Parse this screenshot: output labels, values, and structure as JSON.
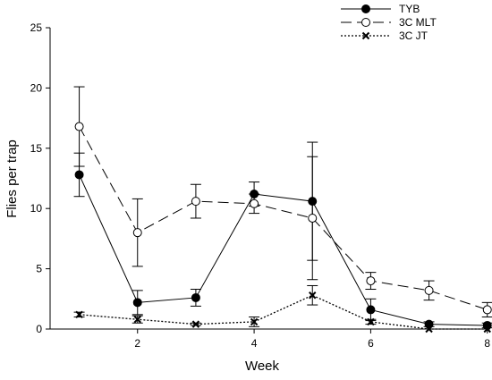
{
  "chart_data": {
    "type": "line",
    "xlabel": "Week",
    "ylabel": "Flies per trap",
    "xlim": [
      0.5,
      8.05
    ],
    "ylim": [
      0,
      25
    ],
    "xticks": [
      2,
      4,
      6,
      8
    ],
    "yticks": [
      0,
      5,
      10,
      15,
      20,
      25
    ],
    "grid": false,
    "legend_position": "top-right",
    "x": [
      1,
      2,
      3,
      4,
      5,
      6,
      7,
      8
    ],
    "series": [
      {
        "name": "TYB",
        "marker": "filled-circle",
        "line_style": "solid",
        "values": [
          12.8,
          2.2,
          2.6,
          11.2,
          10.6,
          1.6,
          0.4,
          0.3
        ],
        "error": [
          1.8,
          1.0,
          0.7,
          1.0,
          4.9,
          0.9,
          0.2,
          0.2
        ]
      },
      {
        "name": "3C MLT",
        "marker": "open-circle",
        "line_style": "long-dash",
        "values": [
          16.8,
          8.0,
          10.6,
          10.4,
          9.2,
          4.0,
          3.2,
          1.6
        ],
        "error": [
          3.3,
          2.8,
          1.4,
          0.8,
          5.1,
          0.7,
          0.8,
          0.6
        ]
      },
      {
        "name": "3C JT",
        "marker": "x",
        "line_style": "dotted",
        "values": [
          1.2,
          0.8,
          0.4,
          0.6,
          2.8,
          0.6,
          0.0,
          0.0
        ],
        "error": [
          0.2,
          0.3,
          0.1,
          0.4,
          0.8,
          0.2,
          0.0,
          0.0
        ]
      }
    ]
  }
}
